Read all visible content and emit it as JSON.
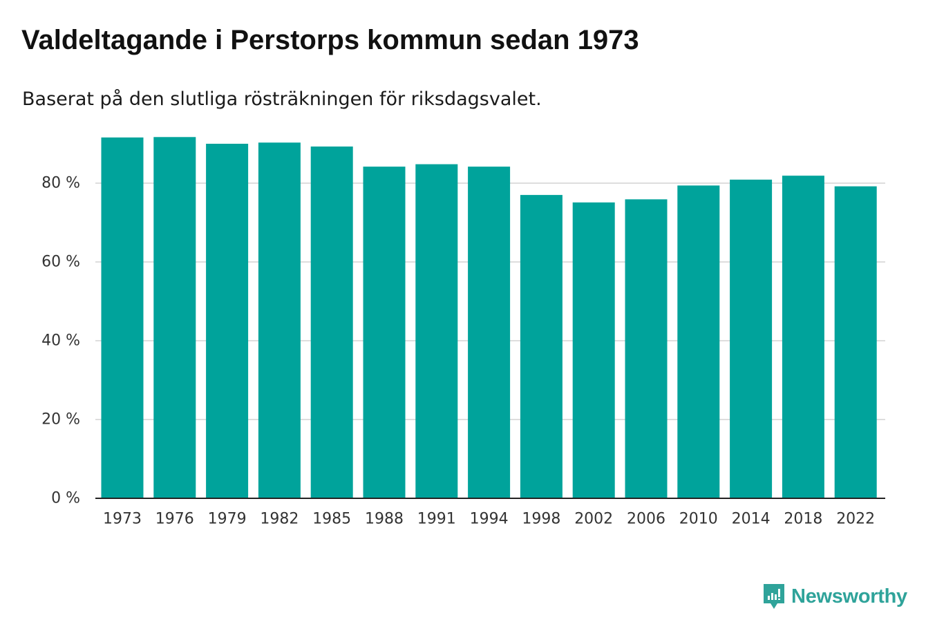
{
  "title": "Valdeltagande i Perstorps kommun sedan 1973",
  "subtitle": "Baserat på den slutliga rösträkningen för riksdagsvalet.",
  "brand": {
    "name": "Newsworthy",
    "icon": "newsworthy-logo-icon",
    "color": "#2fa39a"
  },
  "chart_data": {
    "type": "bar",
    "categories": [
      "1973",
      "1976",
      "1979",
      "1982",
      "1985",
      "1988",
      "1991",
      "1994",
      "1998",
      "2002",
      "2006",
      "2010",
      "2014",
      "2018",
      "2022"
    ],
    "values": [
      91.6,
      91.7,
      90.0,
      90.3,
      89.3,
      84.2,
      84.8,
      84.2,
      77.0,
      75.1,
      75.9,
      79.4,
      80.9,
      81.9,
      79.2
    ],
    "ylim": [
      0,
      100
    ],
    "yticks": [
      0,
      20,
      40,
      60,
      80
    ],
    "ytick_labels": [
      "0 %",
      "20 %",
      "40 %",
      "60 %",
      "80 %"
    ],
    "xlabel": "",
    "ylabel": "",
    "grid": true,
    "bar_color": "#00a39b"
  }
}
